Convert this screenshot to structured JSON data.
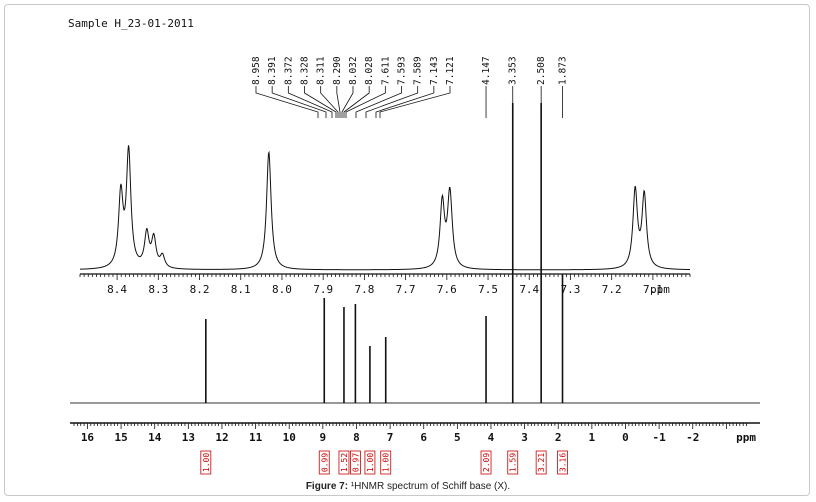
{
  "sample_label": "Sample H_23-01-2011",
  "caption": {
    "label": "Figure 7:",
    "text": "¹HNMR spectrum of Schiff base (X)."
  },
  "chart_data": [
    {
      "type": "line",
      "subtitle": "expanded aromatic region",
      "xlabel": "ppm",
      "xlim": [
        8.49,
        7.01
      ],
      "reversed_x": true,
      "x_ticks": [
        "8.4",
        "8.3",
        "8.2",
        "8.1",
        "8.0",
        "7.9",
        "7.8",
        "7.7",
        "7.6",
        "7.5",
        "7.4",
        "7.3",
        "7.2",
        "7.1"
      ],
      "peaks": [
        {
          "shift": 8.391,
          "height": 0.6
        },
        {
          "shift": 8.372,
          "height": 0.95
        },
        {
          "shift": 8.328,
          "height": 0.28
        },
        {
          "shift": 8.311,
          "height": 0.24
        },
        {
          "shift": 8.29,
          "height": 0.1
        },
        {
          "shift": 8.032,
          "height": 0.93
        },
        {
          "shift": 8.028,
          "height": 0.05
        },
        {
          "shift": 7.611,
          "height": 0.54
        },
        {
          "shift": 7.593,
          "height": 0.56
        },
        {
          "shift": 7.589,
          "height": 0.08
        },
        {
          "shift": 7.143,
          "height": 0.64
        },
        {
          "shift": 7.121,
          "height": 0.6
        }
      ]
    },
    {
      "type": "line",
      "subtitle": "full spectrum",
      "xlabel": "ppm",
      "xlim": [
        16.4,
        -4.0
      ],
      "reversed_x": true,
      "x_ticks": [
        "16",
        "15",
        "14",
        "13",
        "12",
        "11",
        "10",
        "9",
        "8",
        "7",
        "6",
        "5",
        "4",
        "3",
        "2",
        "1",
        "0",
        "-1",
        "-2"
      ],
      "peak_labels": [
        "8.958",
        "8.391",
        "8.372",
        "8.328",
        "8.311",
        "8.290",
        "8.032",
        "8.028",
        "7.611",
        "7.593",
        "7.589",
        "7.143",
        "7.121",
        "4.147",
        "3.353",
        "2.508",
        "1.873"
      ],
      "peaks": [
        {
          "shift": 12.48,
          "height": 0.28
        },
        {
          "shift": 8.958,
          "height": 0.35
        },
        {
          "shift": 8.372,
          "height": 0.32
        },
        {
          "shift": 8.032,
          "height": 0.33
        },
        {
          "shift": 7.6,
          "height": 0.19
        },
        {
          "shift": 7.13,
          "height": 0.22
        },
        {
          "shift": 4.147,
          "height": 0.29
        },
        {
          "shift": 3.353,
          "height": 1.0
        },
        {
          "shift": 2.508,
          "height": 1.0
        },
        {
          "shift": 1.873,
          "height": 0.43
        }
      ],
      "integrals": [
        {
          "shift": 12.48,
          "value": "1.00"
        },
        {
          "shift": 8.958,
          "value": "0.99"
        },
        {
          "shift": 8.372,
          "value": "1.52"
        },
        {
          "shift": 8.032,
          "value": "0.97"
        },
        {
          "shift": 7.6,
          "value": "1.00"
        },
        {
          "shift": 7.13,
          "value": "1.00"
        },
        {
          "shift": 4.147,
          "value": "2.09"
        },
        {
          "shift": 3.353,
          "value": "1.59"
        },
        {
          "shift": 2.508,
          "value": "3.21"
        },
        {
          "shift": 1.873,
          "value": "3.16"
        }
      ]
    }
  ]
}
